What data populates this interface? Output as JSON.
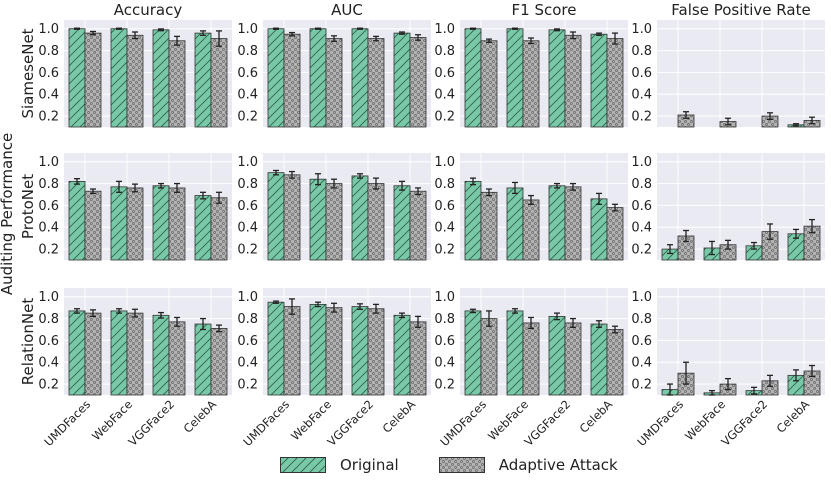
{
  "figure": {
    "y_axis_super_label": "Auditing Performance",
    "legend": {
      "original_label": "Original",
      "adaptive_label": "Adaptive Attack"
    },
    "colors": {
      "original": "#79c9a8",
      "adaptive": "#b3b3b3",
      "panel_bg": "#eaeaf2",
      "grid": "#ffffff",
      "edge": "#333333"
    }
  },
  "chart_data": {
    "type": "bar",
    "grid_layout": "3x4",
    "metrics": [
      "Accuracy",
      "AUC",
      "F1 Score",
      "False Positive Rate"
    ],
    "models": [
      "SiameseNet",
      "ProtoNet",
      "RelationNet"
    ],
    "categories": [
      "UMDFaces",
      "WebFace",
      "VGGFace2",
      "CelebA"
    ],
    "yticks": [
      "0.2",
      "0.4",
      "0.6",
      "0.8",
      "1.0"
    ],
    "ylim": [
      0.1,
      1.08
    ],
    "series_names": [
      "Original",
      "Adaptive Attack"
    ],
    "panels": [
      {
        "model": "SiameseNet",
        "metric": "Accuracy",
        "original": [
          1.0,
          1.0,
          0.99,
          0.96
        ],
        "original_err": [
          0.005,
          0.005,
          0.008,
          0.02
        ],
        "adaptive": [
          0.96,
          0.94,
          0.89,
          0.91
        ],
        "adaptive_err": [
          0.015,
          0.03,
          0.04,
          0.07
        ]
      },
      {
        "model": "SiameseNet",
        "metric": "AUC",
        "original": [
          1.0,
          1.0,
          1.0,
          0.96
        ],
        "original_err": [
          0.005,
          0.005,
          0.005,
          0.01
        ],
        "adaptive": [
          0.95,
          0.91,
          0.91,
          0.92
        ],
        "adaptive_err": [
          0.015,
          0.025,
          0.02,
          0.025
        ]
      },
      {
        "model": "SiameseNet",
        "metric": "F1 Score",
        "original": [
          1.0,
          1.0,
          0.99,
          0.95
        ],
        "original_err": [
          0.005,
          0.005,
          0.008,
          0.01
        ],
        "adaptive": [
          0.89,
          0.89,
          0.94,
          0.91
        ],
        "adaptive_err": [
          0.015,
          0.025,
          0.03,
          0.05
        ]
      },
      {
        "model": "SiameseNet",
        "metric": "False Positive Rate",
        "original": [
          0.0,
          0.0,
          0.01,
          0.12
        ],
        "original_err": [
          0.0,
          0.0,
          0.0,
          0.01
        ],
        "adaptive": [
          0.21,
          0.15,
          0.2,
          0.16
        ],
        "adaptive_err": [
          0.03,
          0.03,
          0.03,
          0.03
        ]
      },
      {
        "model": "ProtoNet",
        "metric": "Accuracy",
        "original": [
          0.82,
          0.77,
          0.78,
          0.69
        ],
        "original_err": [
          0.025,
          0.05,
          0.02,
          0.03
        ],
        "adaptive": [
          0.73,
          0.76,
          0.76,
          0.67
        ],
        "adaptive_err": [
          0.02,
          0.035,
          0.04,
          0.05
        ]
      },
      {
        "model": "ProtoNet",
        "metric": "AUC",
        "original": [
          0.9,
          0.84,
          0.87,
          0.78
        ],
        "original_err": [
          0.02,
          0.05,
          0.02,
          0.04
        ],
        "adaptive": [
          0.88,
          0.8,
          0.8,
          0.73
        ],
        "adaptive_err": [
          0.03,
          0.04,
          0.05,
          0.03
        ]
      },
      {
        "model": "ProtoNet",
        "metric": "F1 Score",
        "original": [
          0.82,
          0.76,
          0.78,
          0.66
        ],
        "original_err": [
          0.03,
          0.05,
          0.02,
          0.05
        ],
        "adaptive": [
          0.72,
          0.65,
          0.77,
          0.58
        ],
        "adaptive_err": [
          0.03,
          0.04,
          0.03,
          0.03
        ]
      },
      {
        "model": "ProtoNet",
        "metric": "False Positive Rate",
        "original": [
          0.2,
          0.21,
          0.23,
          0.34
        ],
        "original_err": [
          0.04,
          0.06,
          0.03,
          0.04
        ],
        "adaptive": [
          0.32,
          0.24,
          0.36,
          0.41
        ],
        "adaptive_err": [
          0.05,
          0.04,
          0.07,
          0.06
        ]
      },
      {
        "model": "RelationNet",
        "metric": "Accuracy",
        "original": [
          0.87,
          0.87,
          0.83,
          0.75
        ],
        "original_err": [
          0.02,
          0.02,
          0.025,
          0.05
        ],
        "adaptive": [
          0.85,
          0.85,
          0.77,
          0.71
        ],
        "adaptive_err": [
          0.03,
          0.035,
          0.04,
          0.03
        ]
      },
      {
        "model": "RelationNet",
        "metric": "AUC",
        "original": [
          0.95,
          0.93,
          0.91,
          0.83
        ],
        "original_err": [
          0.01,
          0.02,
          0.025,
          0.02
        ],
        "adaptive": [
          0.91,
          0.9,
          0.89,
          0.77
        ],
        "adaptive_err": [
          0.07,
          0.04,
          0.04,
          0.05
        ]
      },
      {
        "model": "RelationNet",
        "metric": "F1 Score",
        "original": [
          0.87,
          0.87,
          0.82,
          0.75
        ],
        "original_err": [
          0.015,
          0.02,
          0.03,
          0.03
        ],
        "adaptive": [
          0.8,
          0.76,
          0.76,
          0.7
        ],
        "adaptive_err": [
          0.07,
          0.05,
          0.04,
          0.03
        ]
      },
      {
        "model": "RelationNet",
        "metric": "False Positive Rate",
        "original": [
          0.15,
          0.12,
          0.14,
          0.28
        ],
        "original_err": [
          0.05,
          0.02,
          0.03,
          0.05
        ],
        "adaptive": [
          0.3,
          0.2,
          0.23,
          0.32
        ],
        "adaptive_err": [
          0.1,
          0.05,
          0.05,
          0.05
        ]
      }
    ]
  }
}
